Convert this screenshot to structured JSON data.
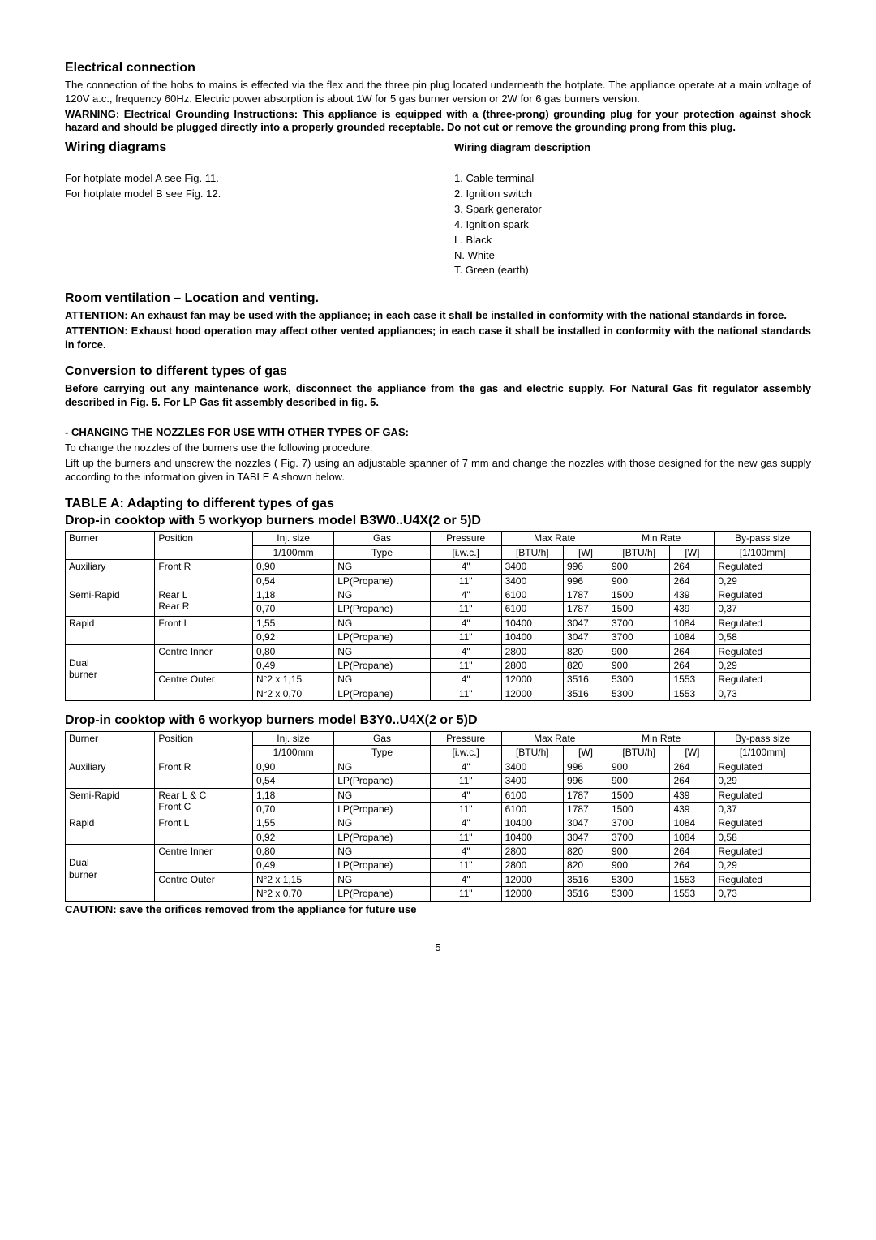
{
  "electrical": {
    "heading": "Electrical connection",
    "p1": "The connection of the hobs to mains is effected via the flex and the three pin plug located underneath the hotplate. The appliance operate at a main voltage of 120V a.c., frequency 60Hz. Electric power absorption is about 1W for 5 gas burner version or 2W for 6 gas burners version.",
    "p2": "WARNING: Electrical Grounding Instructions: This appliance is equipped with a (three-prong) grounding plug for your protection against shock hazard and should be plugged directly into a properly grounded receptable. Do not cut or remove the grounding prong from this plug."
  },
  "wiring": {
    "heading": "Wiring diagrams",
    "l1": "For hotplate model A see Fig. 11.",
    "l2": "For hotplate model B see Fig. 12.",
    "desc_heading": "Wiring diagram description",
    "d1": "1. Cable terminal",
    "d2": "2. Ignition switch",
    "d3": "3. Spark generator",
    "d4": "4. Ignition spark",
    "d5": "L. Black",
    "d6": "N. White",
    "d7": "T. Green (earth)"
  },
  "room": {
    "heading": "Room ventilation – Location and venting.",
    "p1": "ATTENTION: An exhaust fan may be used with the appliance; in each case it shall be installed in conformity with the national standards in force.",
    "p2": "ATTENTION: Exhaust hood operation may affect other vented appliances; in each case it shall be installed in conformity with the national standards in force."
  },
  "conversion": {
    "heading": "Conversion to different types of gas",
    "p1": "Before carrying out any maintenance work, disconnect the appliance from the gas and electric supply. For Natural Gas fit regulator assembly described in Fig. 5. For LP Gas fit assembly described in fig. 5.",
    "sub": " - CHANGING THE NOZZLES FOR USE WITH OTHER TYPES OF GAS:",
    "p2": "To change the nozzles of the burners  use the following procedure:",
    "p3": "Lift up the burners and unscrew the nozzles ( Fig. 7) using an adjustable spanner of 7 mm and change the nozzles with those designed for the new gas supply according to the information given in TABLE A shown below."
  },
  "tableA": {
    "heading": "TABLE A: Adapting to different types of gas",
    "sub5": "Drop-in cooktop with 5 workyop burners model B3W0..U4X(2 or 5)D",
    "sub6": "Drop-in cooktop with 6 workyop burners model B3Y0..U4X(2 or 5)D",
    "hdr": {
      "burner": "Burner",
      "position": "Position",
      "inj": "Inj. size",
      "gas": "Gas",
      "pressure": "Pressure",
      "max": "Max Rate",
      "min": "Min Rate",
      "bypass": "By-pass size",
      "mm": "1/100mm",
      "type": "Type",
      "iwc": "[i.w.c.]",
      "btu": "[BTU/h]",
      "w": "[W]",
      "mm2": "[1/100mm]"
    },
    "t5": [
      {
        "b": "Auxiliary",
        "pos": "Front R",
        "inj1": "0,90",
        "g1": "NG",
        "pr1": "4\"",
        "mb1": "3400",
        "mw1": "996",
        "nb1": "900",
        "nw1": "264",
        "bp1": "Regulated",
        "inj2": "0,54",
        "g2": "LP(Propane)",
        "pr2": "11\"",
        "mb2": "3400",
        "mw2": "996",
        "nb2": "900",
        "nw2": "264",
        "bp2": "0,29"
      },
      {
        "b": "Semi-Rapid",
        "pos": "Rear L",
        "pos2": "Rear R",
        "inj1": "1,18",
        "g1": "NG",
        "pr1": "4\"",
        "mb1": "6100",
        "mw1": "1787",
        "nb1": "1500",
        "nw1": "439",
        "bp1": "Regulated",
        "inj2": "0,70",
        "g2": "LP(Propane)",
        "pr2": "11\"",
        "mb2": "6100",
        "mw2": "1787",
        "nb2": "1500",
        "nw2": "439",
        "bp2": "0,37"
      },
      {
        "b": "Rapid",
        "pos": "Front L",
        "inj1": "1,55",
        "g1": "NG",
        "pr1": "4\"",
        "mb1": "10400",
        "mw1": "3047",
        "nb1": "3700",
        "nw1": "1084",
        "bp1": "Regulated",
        "inj2": "0,92",
        "g2": "LP(Propane)",
        "pr2": "11\"",
        "mb2": "10400",
        "mw2": "3047",
        "nb2": "3700",
        "nw2": "1084",
        "bp2": "0,58"
      },
      {
        "b": "",
        "pos": "Centre Inner",
        "inj1": "0,80",
        "g1": "NG",
        "pr1": "4\"",
        "mb1": "2800",
        "mw1": "820",
        "nb1": "900",
        "nw1": "264",
        "bp1": "Regulated",
        "b2": "Dual",
        "inj2": "0,49",
        "g2": "LP(Propane)",
        "pr2": "11\"",
        "mb2": "2800",
        "mw2": "820",
        "nb2": "900",
        "nw2": "264",
        "bp2": "0,29"
      },
      {
        "b": "burner",
        "pos": "Centre Outer",
        "inj1": "N°2 x 1,15",
        "g1": "NG",
        "pr1": "4\"",
        "mb1": "12000",
        "mw1": "3516",
        "nb1": "5300",
        "nw1": "1553",
        "bp1": "Regulated",
        "inj2": "N°2 x 0,70",
        "g2": "LP(Propane)",
        "pr2": "11\"",
        "mb2": "12000",
        "mw2": "3516",
        "nb2": "5300",
        "nw2": "1553",
        "bp2": "0,73"
      }
    ],
    "t6": [
      {
        "b": "Auxiliary",
        "pos": "Front R",
        "inj1": "0,90",
        "g1": "NG",
        "pr1": "4\"",
        "mb1": "3400",
        "mw1": "996",
        "nb1": "900",
        "nw1": "264",
        "bp1": "Regulated",
        "inj2": "0,54",
        "g2": "LP(Propane)",
        "pr2": "11\"",
        "mb2": "3400",
        "mw2": "996",
        "nb2": "900",
        "nw2": "264",
        "bp2": "0,29"
      },
      {
        "b": "Semi-Rapid",
        "pos": "Rear L & C",
        "pos2": "Front C",
        "inj1": "1,18",
        "g1": "NG",
        "pr1": "4\"",
        "mb1": "6100",
        "mw1": "1787",
        "nb1": "1500",
        "nw1": "439",
        "bp1": "Regulated",
        "inj2": "0,70",
        "g2": "LP(Propane)",
        "pr2": "11\"",
        "mb2": "6100",
        "mw2": "1787",
        "nb2": "1500",
        "nw2": "439",
        "bp2": "0,37"
      },
      {
        "b": "Rapid",
        "pos": "Front L",
        "inj1": "1,55",
        "g1": "NG",
        "pr1": "4\"",
        "mb1": "10400",
        "mw1": "3047",
        "nb1": "3700",
        "nw1": "1084",
        "bp1": "Regulated",
        "inj2": "0,92",
        "g2": "LP(Propane)",
        "pr2": "11\"",
        "mb2": "10400",
        "mw2": "3047",
        "nb2": "3700",
        "nw2": "1084",
        "bp2": "0,58"
      },
      {
        "b": "",
        "pos": "Centre Inner",
        "inj1": "0,80",
        "g1": "NG",
        "pr1": "4\"",
        "mb1": "2800",
        "mw1": "820",
        "nb1": "900",
        "nw1": "264",
        "bp1": "Regulated",
        "b2": "Dual",
        "inj2": "0,49",
        "g2": "LP(Propane)",
        "pr2": "11\"",
        "mb2": "2800",
        "mw2": "820",
        "nb2": "900",
        "nw2": "264",
        "bp2": "0,29"
      },
      {
        "b": "burner",
        "pos": "Centre Outer",
        "inj1": "N°2 x 1,15",
        "g1": "NG",
        "pr1": "4\"",
        "mb1": "12000",
        "mw1": "3516",
        "nb1": "5300",
        "nw1": "1553",
        "bp1": "Regulated",
        "inj2": "N°2 x 0,70",
        "g2": "LP(Propane)",
        "pr2": "11\"",
        "mb2": "12000",
        "mw2": "3516",
        "nb2": "5300",
        "nw2": "1553",
        "bp2": "0,73"
      }
    ]
  },
  "caution": "CAUTION: save the orifices removed from the appliance for future use",
  "pagenum": "5"
}
